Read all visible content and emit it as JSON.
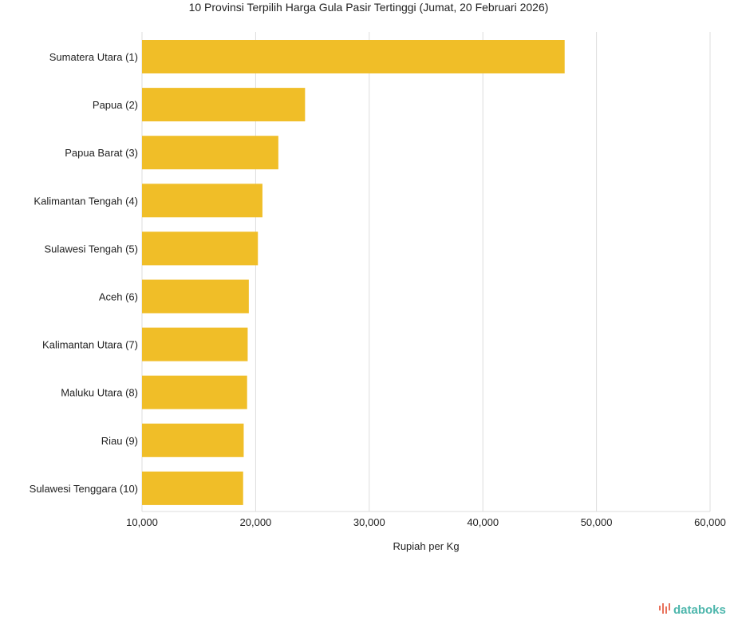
{
  "chart_data": {
    "type": "bar",
    "orientation": "horizontal",
    "title": "10 Provinsi Terpilih Harga Gula Pasir Tertinggi (Jumat, 20 Februari 2026)",
    "xlabel": "Rupiah per Kg",
    "ylabel": "",
    "xlim": [
      10000,
      60000
    ],
    "ticks": [
      10000,
      20000,
      30000,
      40000,
      50000,
      60000
    ],
    "tick_labels": [
      "10,000",
      "20,000",
      "30,000",
      "40,000",
      "50,000",
      "60,000"
    ],
    "grid": true,
    "categories": [
      "Sumatera Utara (1)",
      "Papua (2)",
      "Papua Barat (3)",
      "Kalimantan Tengah (4)",
      "Sulawesi Tengah (5)",
      "Aceh (6)",
      "Kalimantan Utara (7)",
      "Maluku Utara (8)",
      "Riau (9)",
      "Sulawesi Tenggara (10)"
    ],
    "values": [
      47200,
      24350,
      22000,
      20600,
      20200,
      19400,
      19300,
      19250,
      18950,
      18900
    ],
    "color": "#F0BE28"
  },
  "branding": {
    "logo": "databoks",
    "logo_color": "#4DB6AC",
    "logo_icon_color": "#E8705A"
  }
}
